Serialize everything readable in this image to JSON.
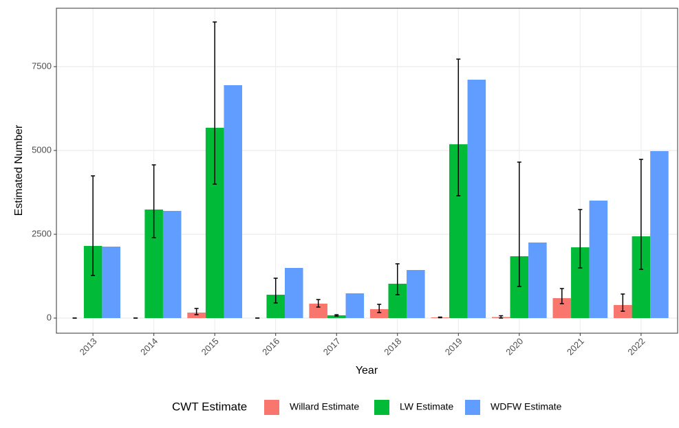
{
  "chart_data": {
    "type": "bar",
    "x_label": "Year",
    "y_label": "Estimated Number",
    "legend_title": "CWT Estimate",
    "categories": [
      "2013",
      "2014",
      "2015",
      "2016",
      "2017",
      "2018",
      "2019",
      "2020",
      "2021",
      "2022"
    ],
    "series": [
      {
        "name": "Willard Estimate",
        "color": "#F8766D",
        "values": [
          0,
          0,
          164,
          0,
          430,
          266,
          20,
          30,
          594,
          389
        ],
        "lower": [
          0,
          0,
          102,
          0,
          328,
          164,
          10,
          0,
          430,
          205
        ],
        "upper": [
          0,
          0,
          287,
          0,
          553,
          410,
          30,
          70,
          881,
          717
        ]
      },
      {
        "name": "LW Estimate",
        "color": "#00BA38",
        "values": [
          2152,
          3238,
          5676,
          697,
          82,
          1025,
          5184,
          1844,
          2111,
          2439
        ],
        "lower": [
          1270,
          2398,
          3996,
          451,
          60,
          697,
          3648,
          943,
          1496,
          1455
        ],
        "upper": [
          4242,
          4570,
          8832,
          1189,
          100,
          1619,
          7725,
          4652,
          3238,
          4734
        ]
      },
      {
        "name": "WDFW Estimate",
        "color": "#619CFF",
        "values": [
          2131,
          3197,
          6947,
          1496,
          738,
          1434,
          7111,
          2254,
          3504,
          4980
        ]
      }
    ],
    "ylim": [
      -451,
      9242
    ],
    "yticks": [
      0,
      2500,
      5000,
      7500
    ],
    "grid": true,
    "legend": "bottom"
  }
}
